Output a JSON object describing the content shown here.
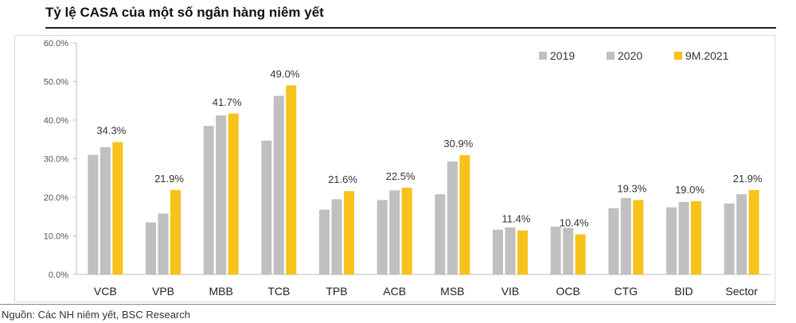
{
  "title": "Tỷ lệ CASA của một số ngân hàng niêm yết",
  "source": "Nguồn: Các NH niêm yết, BSC Research",
  "chart_data": {
    "type": "bar",
    "title": "Tỷ lệ CASA của một số ngân hàng niêm yết",
    "xlabel": "",
    "ylabel": "",
    "ylim": [
      0,
      60
    ],
    "y_ticks": [
      "0.0%",
      "10.0%",
      "20.0%",
      "30.0%",
      "40.0%",
      "50.0%",
      "60.0%"
    ],
    "grid": false,
    "legend_position": "top-right",
    "categories": [
      "VCB",
      "VPB",
      "MBB",
      "TCB",
      "TPB",
      "ACB",
      "MSB",
      "VIB",
      "OCB",
      "CTG",
      "BID",
      "Sector"
    ],
    "series": [
      {
        "name": "2019",
        "color": "#c0c0c0",
        "values": [
          31.0,
          13.5,
          38.5,
          34.7,
          16.8,
          19.3,
          20.8,
          11.6,
          12.4,
          17.2,
          17.4,
          18.4
        ]
      },
      {
        "name": "2020",
        "color": "#c0c0c0",
        "values": [
          33.0,
          15.8,
          41.2,
          46.3,
          19.5,
          21.8,
          29.3,
          12.2,
          12.1,
          19.8,
          18.8,
          20.8
        ]
      },
      {
        "name": "9M.2021",
        "color": "#f7c21a",
        "values": [
          34.3,
          21.9,
          41.7,
          49.0,
          21.6,
          22.5,
          30.9,
          11.4,
          10.4,
          19.3,
          19.0,
          21.9
        ]
      }
    ],
    "data_labels": [
      "34.3%",
      "21.9%",
      "41.7%",
      "49.0%",
      "21.6%",
      "22.5%",
      "30.9%",
      "11.4%",
      "10.4%",
      "19.3%",
      "19.0%",
      "21.9%"
    ]
  }
}
